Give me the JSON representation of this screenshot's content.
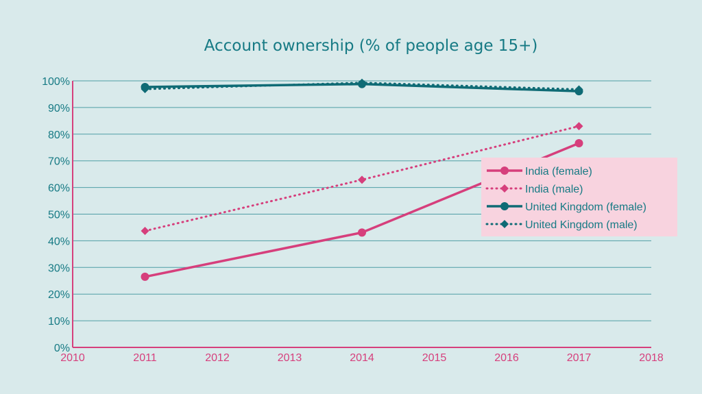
{
  "colors": {
    "background": "#d9eaeb",
    "india": "#d63f7c",
    "uk": "#0f6b75",
    "title": "#167a84",
    "gridline": "#4f9ea5",
    "x_axis": "#d63f7c",
    "legend_bg": "#f8d3df"
  },
  "chart_data": {
    "type": "line",
    "title": "Account ownership (% of people age 15+)",
    "xlabel": "",
    "ylabel": "",
    "xlim": [
      2010,
      2018
    ],
    "ylim": [
      0,
      100
    ],
    "x_ticks": [
      "2010",
      "2011",
      "2012",
      "2013",
      "2014",
      "2015",
      "2016",
      "2017",
      "2018"
    ],
    "y_ticks": [
      "0%",
      "10%",
      "20%",
      "30%",
      "40%",
      "50%",
      "60%",
      "70%",
      "80%",
      "90%",
      "100%"
    ],
    "grid": "horizontal",
    "legend_position": "right",
    "series": [
      {
        "name": "India (female)",
        "color": "#d63f7c",
        "style": "solid",
        "marker": "circle",
        "x": [
          2011,
          2014,
          2017
        ],
        "values": [
          26.5,
          43.1,
          76.6
        ]
      },
      {
        "name": "India (male)",
        "color": "#d63f7c",
        "style": "dotted",
        "marker": "diamond",
        "x": [
          2011,
          2014,
          2017
        ],
        "values": [
          43.7,
          62.9,
          83.0
        ]
      },
      {
        "name": "United Kingdom (female)",
        "color": "#0f6b75",
        "style": "solid",
        "marker": "circle",
        "x": [
          2011,
          2014,
          2017
        ],
        "values": [
          97.7,
          98.8,
          96.1
        ]
      },
      {
        "name": "United Kingdom (male)",
        "color": "#0f6b75",
        "style": "dotted",
        "marker": "diamond",
        "x": [
          2011,
          2014,
          2017
        ],
        "values": [
          96.9,
          99.3,
          96.8
        ]
      }
    ]
  }
}
